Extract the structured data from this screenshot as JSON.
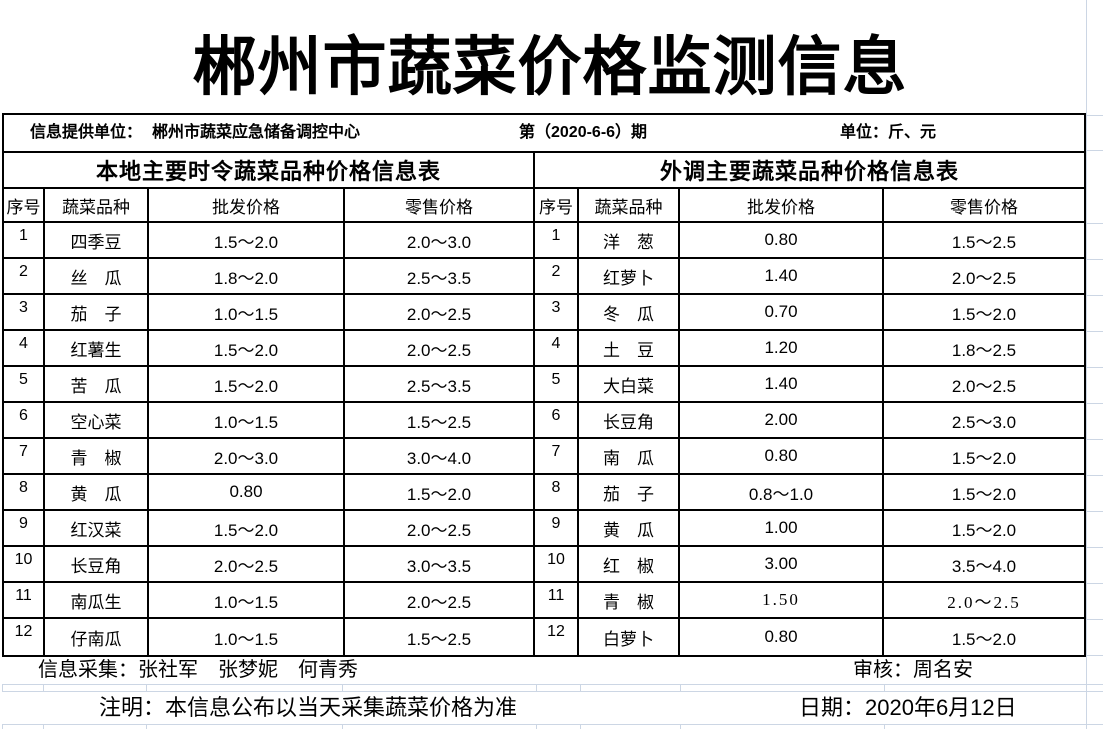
{
  "title": "郴州市蔬菜价格监测信息",
  "info_bar": {
    "provider_label": "信息提供单位：",
    "provider_value": "郴州市蔬菜应急储备调控中心",
    "issue": "第（2020-6-6）期",
    "unit": "单位：斤、元"
  },
  "left_table": {
    "title": "本地主要时令蔬菜品种价格信息表",
    "columns": [
      "序号",
      "蔬菜品种",
      "批发价格",
      "零售价格"
    ],
    "rows": [
      [
        "1",
        "四季豆",
        "1.5～2.0",
        "2.0～3.0"
      ],
      [
        "2",
        "丝　瓜",
        "1.8～2.0",
        "2.5～3.5"
      ],
      [
        "3",
        "茄　子",
        "1.0～1.5",
        "2.0～2.5"
      ],
      [
        "4",
        "红薯生",
        "1.5～2.0",
        "2.0～2.5"
      ],
      [
        "5",
        "苦　瓜",
        "1.5～2.0",
        "2.5～3.5"
      ],
      [
        "6",
        "空心菜",
        "1.0～1.5",
        "1.5～2.5"
      ],
      [
        "7",
        "青　椒",
        "2.0～3.0",
        "3.0～4.0"
      ],
      [
        "8",
        "黄　瓜",
        "0.80",
        "1.5～2.0"
      ],
      [
        "9",
        "红汉菜",
        "1.5～2.0",
        "2.0～2.5"
      ],
      [
        "10",
        "长豆角",
        "2.0～2.5",
        "3.0～3.5"
      ],
      [
        "11",
        "南瓜生",
        "1.0～1.5",
        "2.0～2.5"
      ],
      [
        "12",
        "仔南瓜",
        "1.0～1.5",
        "1.5～2.5"
      ]
    ],
    "serif_rows": []
  },
  "right_table": {
    "title": "外调主要蔬菜品种价格信息表",
    "columns": [
      "序号",
      "蔬菜品种",
      "批发价格",
      "零售价格"
    ],
    "rows": [
      [
        "1",
        "洋　葱",
        "0.80",
        "1.5～2.5"
      ],
      [
        "2",
        "红萝卜",
        "1.40",
        "2.0～2.5"
      ],
      [
        "3",
        "冬　瓜",
        "0.70",
        "1.5～2.0"
      ],
      [
        "4",
        "土　豆",
        "1.20",
        "1.8～2.5"
      ],
      [
        "5",
        "大白菜",
        "1.40",
        "2.0～2.5"
      ],
      [
        "6",
        "长豆角",
        "2.00",
        "2.5～3.0"
      ],
      [
        "7",
        "南　瓜",
        "0.80",
        "1.5～2.0"
      ],
      [
        "8",
        "茄　子",
        "0.8～1.0",
        "1.5～2.0"
      ],
      [
        "9",
        "黄　瓜",
        "1.00",
        "1.5～2.0"
      ],
      [
        "10",
        "红　椒",
        "3.00",
        "3.5～4.0"
      ],
      [
        "11",
        "青　椒",
        "1.50",
        "2.0～2.5"
      ],
      [
        "12",
        "白萝卜",
        "0.80",
        "1.5～2.0"
      ]
    ],
    "serif_rows": [
      10
    ]
  },
  "footer": {
    "collectors": "信息采集：张社军　张梦妮　何青秀",
    "reviewer": "审核：周名安",
    "note": "注明：本信息公布以当天采集蔬菜价格为准",
    "date": "日期：2020年6月12日"
  },
  "colors": {
    "border": "#000000",
    "gridline": "#ccd6e4",
    "text": "#000000",
    "background": "#ffffff"
  }
}
